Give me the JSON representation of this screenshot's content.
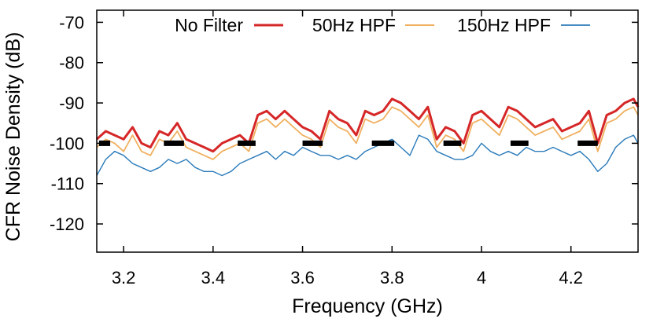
{
  "chart_data": {
    "type": "line",
    "title": "",
    "xlabel": "Frequency (GHz)",
    "ylabel": "CFR Noise Density (dB)",
    "xlim": [
      3.14,
      4.35
    ],
    "ylim": [
      -127,
      -67
    ],
    "xticks": [
      3.2,
      3.4,
      3.6,
      3.8,
      4.0,
      4.2
    ],
    "xtick_labels": [
      "3.2",
      "3.4",
      "3.6",
      "3.8",
      "4",
      "4.2"
    ],
    "yticks": [
      -120,
      -110,
      -100,
      -90,
      -80,
      -70
    ],
    "ytick_labels": [
      "-120",
      "-110",
      "-100",
      "-90",
      "-80",
      "-70"
    ],
    "grid": false,
    "legend_position": "top",
    "legend": [
      "No Filter",
      "50Hz HPF",
      "150Hz HPF"
    ],
    "series": [
      {
        "name": "No Filter",
        "color": "#d62728",
        "x": [
          3.14,
          3.16,
          3.18,
          3.2,
          3.22,
          3.24,
          3.26,
          3.28,
          3.3,
          3.32,
          3.34,
          3.36,
          3.38,
          3.4,
          3.42,
          3.44,
          3.46,
          3.48,
          3.5,
          3.52,
          3.54,
          3.56,
          3.58,
          3.6,
          3.62,
          3.64,
          3.66,
          3.68,
          3.7,
          3.72,
          3.74,
          3.76,
          3.78,
          3.8,
          3.82,
          3.84,
          3.86,
          3.88,
          3.9,
          3.92,
          3.94,
          3.96,
          3.98,
          4.0,
          4.02,
          4.04,
          4.06,
          4.08,
          4.1,
          4.12,
          4.14,
          4.16,
          4.18,
          4.2,
          4.22,
          4.24,
          4.26,
          4.28,
          4.3,
          4.32,
          4.34,
          4.35
        ],
        "y": [
          -99,
          -97,
          -98,
          -99,
          -96,
          -100,
          -101,
          -97,
          -98,
          -95,
          -99,
          -100,
          -101,
          -102,
          -100,
          -99,
          -98,
          -100,
          -93,
          -92,
          -94,
          -92,
          -94,
          -96,
          -97,
          -99,
          -92,
          -94,
          -95,
          -98,
          -92,
          -93,
          -92,
          -89,
          -90,
          -92,
          -94,
          -91,
          -99,
          -96,
          -97,
          -100,
          -93,
          -92,
          -94,
          -96,
          -91,
          -92,
          -94,
          -96,
          -95,
          -94,
          -97,
          -96,
          -95,
          -92,
          -100,
          -93,
          -92,
          -90,
          -89,
          -91
        ]
      },
      {
        "name": "50Hz HPF",
        "color": "#f0b060",
        "x": [
          3.14,
          3.16,
          3.18,
          3.2,
          3.22,
          3.24,
          3.26,
          3.28,
          3.3,
          3.32,
          3.34,
          3.36,
          3.38,
          3.4,
          3.42,
          3.44,
          3.46,
          3.48,
          3.5,
          3.52,
          3.54,
          3.56,
          3.58,
          3.6,
          3.62,
          3.64,
          3.66,
          3.68,
          3.7,
          3.72,
          3.74,
          3.76,
          3.78,
          3.8,
          3.82,
          3.84,
          3.86,
          3.88,
          3.9,
          3.92,
          3.94,
          3.96,
          3.98,
          4.0,
          4.02,
          4.04,
          4.06,
          4.08,
          4.1,
          4.12,
          4.14,
          4.16,
          4.18,
          4.2,
          4.22,
          4.24,
          4.26,
          4.28,
          4.3,
          4.32,
          4.34,
          4.35
        ],
        "y": [
          -101,
          -99,
          -100,
          -102,
          -98,
          -102,
          -103,
          -99,
          -100,
          -97,
          -101,
          -102,
          -103,
          -104,
          -102,
          -101,
          -100,
          -102,
          -95,
          -94,
          -96,
          -94,
          -96,
          -98,
          -99,
          -101,
          -94,
          -96,
          -97,
          -100,
          -94,
          -95,
          -94,
          -91,
          -92,
          -94,
          -96,
          -93,
          -101,
          -98,
          -99,
          -102,
          -95,
          -94,
          -96,
          -98,
          -93,
          -94,
          -96,
          -98,
          -97,
          -96,
          -99,
          -98,
          -97,
          -94,
          -102,
          -95,
          -94,
          -92,
          -91,
          -93
        ]
      },
      {
        "name": "150Hz HPF",
        "color": "#2b7bba",
        "x": [
          3.14,
          3.16,
          3.18,
          3.2,
          3.22,
          3.24,
          3.26,
          3.28,
          3.3,
          3.32,
          3.34,
          3.36,
          3.38,
          3.4,
          3.42,
          3.44,
          3.46,
          3.48,
          3.5,
          3.52,
          3.54,
          3.56,
          3.58,
          3.6,
          3.62,
          3.64,
          3.66,
          3.68,
          3.7,
          3.72,
          3.74,
          3.76,
          3.78,
          3.8,
          3.82,
          3.84,
          3.86,
          3.88,
          3.9,
          3.92,
          3.94,
          3.96,
          3.98,
          4.0,
          4.02,
          4.04,
          4.06,
          4.08,
          4.1,
          4.12,
          4.14,
          4.16,
          4.18,
          4.2,
          4.22,
          4.24,
          4.26,
          4.28,
          4.3,
          4.32,
          4.34,
          4.35
        ],
        "y": [
          -108,
          -104,
          -102,
          -103,
          -105,
          -106,
          -107,
          -106,
          -104,
          -105,
          -104,
          -106,
          -107,
          -107,
          -108,
          -107,
          -105,
          -104,
          -103,
          -102,
          -104,
          -102,
          -103,
          -101,
          -102,
          -103,
          -103,
          -104,
          -103,
          -104,
          -102,
          -101,
          -100,
          -99,
          -101,
          -103,
          -98,
          -99,
          -102,
          -103,
          -104,
          -104,
          -103,
          -100,
          -102,
          -103,
          -102,
          -103,
          -101,
          -102,
          -102,
          -101,
          -102,
          -103,
          -102,
          -104,
          -107,
          -105,
          -101,
          -99,
          -98,
          -100
        ]
      }
    ],
    "markers": {
      "color": "#000000",
      "y": -100,
      "segments": [
        [
          3.145,
          3.17
        ],
        [
          3.29,
          3.335
        ],
        [
          3.455,
          3.495
        ],
        [
          3.6,
          3.645
        ],
        [
          3.755,
          3.805
        ],
        [
          3.915,
          3.955
        ],
        [
          4.065,
          4.105
        ],
        [
          4.215,
          4.26
        ]
      ]
    }
  }
}
